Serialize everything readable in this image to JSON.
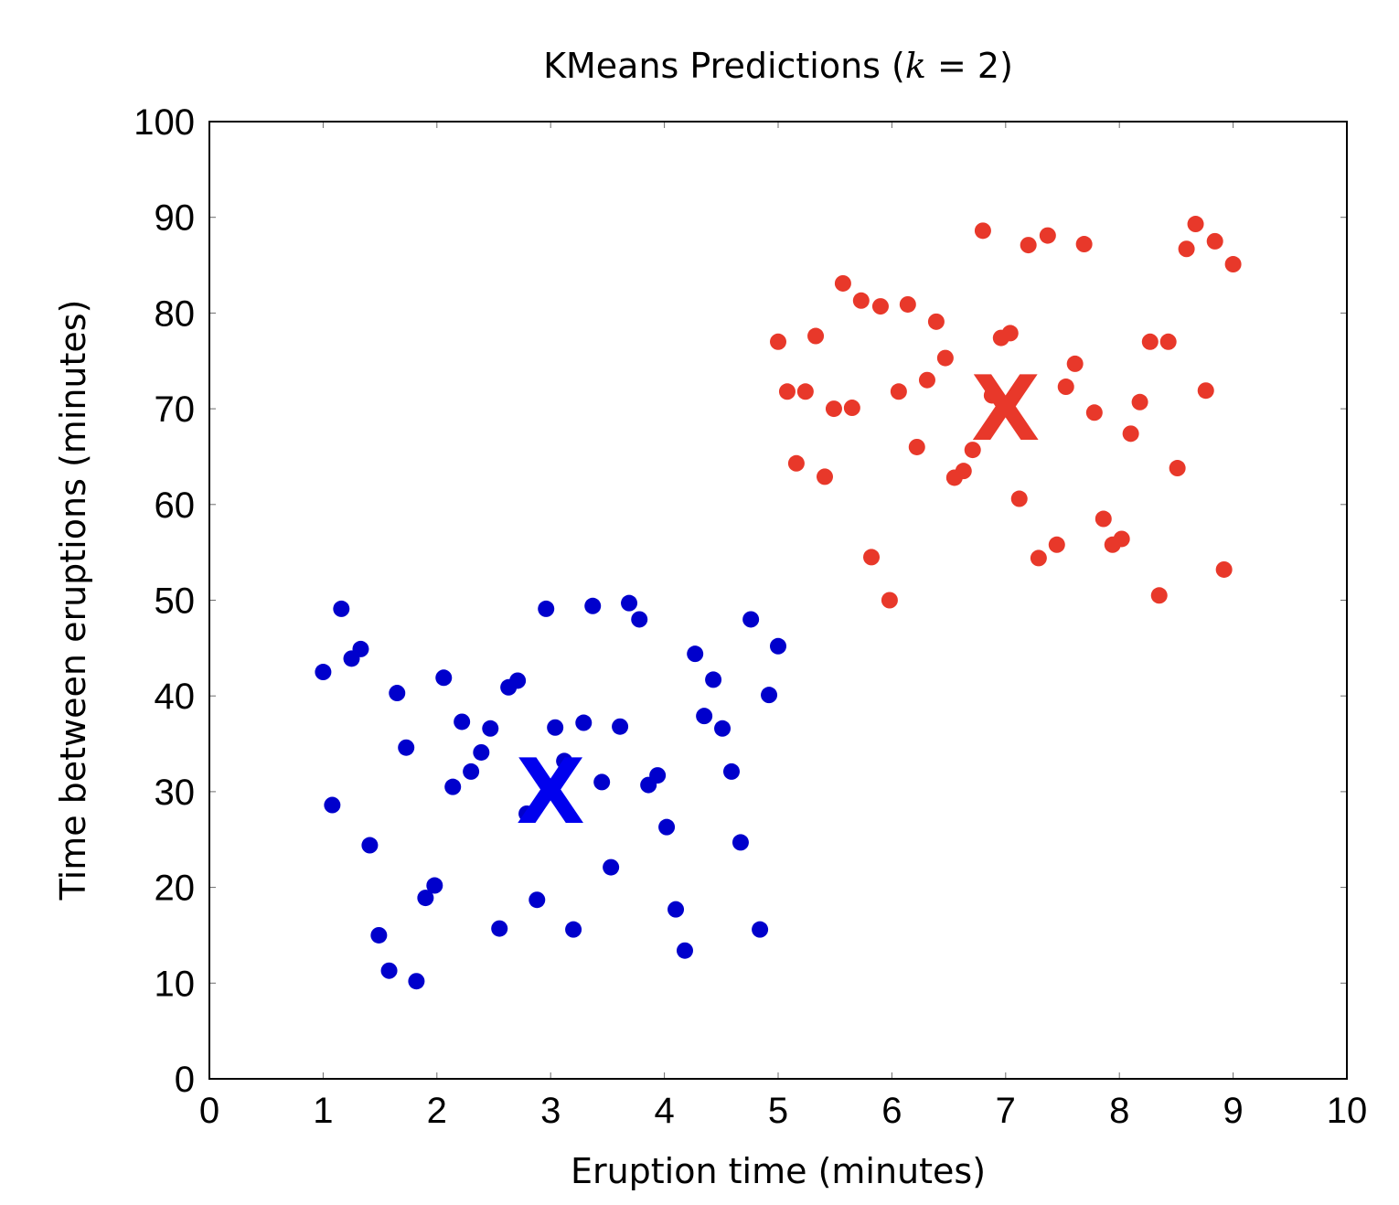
{
  "chart_data": {
    "type": "scatter",
    "title_parts": [
      "KMeans Predictions (",
      "k",
      " = 2)"
    ],
    "xlabel": "Eruption time (minutes)",
    "ylabel": "Time between eruptions (minutes)",
    "xlim": [
      0,
      10
    ],
    "ylim": [
      0,
      100
    ],
    "xticks": [
      "0",
      "1",
      "2",
      "3",
      "4",
      "5",
      "6",
      "7",
      "8",
      "9",
      "10"
    ],
    "yticks": [
      "0",
      "10",
      "20",
      "30",
      "40",
      "50",
      "60",
      "70",
      "80",
      "90",
      "100"
    ],
    "grid": false,
    "series": [
      {
        "color": "#0000cc",
        "points": [
          [
            1.0,
            42.5
          ],
          [
            1.08,
            28.6
          ],
          [
            1.16,
            49.1
          ],
          [
            1.25,
            43.9
          ],
          [
            1.33,
            44.9
          ],
          [
            1.41,
            24.4
          ],
          [
            1.49,
            15.0
          ],
          [
            1.58,
            11.3
          ],
          [
            1.65,
            40.3
          ],
          [
            1.73,
            34.6
          ],
          [
            1.82,
            10.2
          ],
          [
            1.9,
            18.9
          ],
          [
            1.98,
            20.2
          ],
          [
            2.06,
            41.9
          ],
          [
            2.14,
            30.5
          ],
          [
            2.22,
            37.3
          ],
          [
            2.3,
            32.1
          ],
          [
            2.39,
            34.1
          ],
          [
            2.47,
            36.6
          ],
          [
            2.55,
            15.7
          ],
          [
            2.63,
            40.9
          ],
          [
            2.71,
            41.6
          ],
          [
            2.79,
            27.7
          ],
          [
            2.88,
            18.7
          ],
          [
            2.96,
            49.1
          ],
          [
            3.04,
            36.7
          ],
          [
            3.12,
            33.2
          ],
          [
            3.2,
            15.6
          ],
          [
            3.29,
            37.2
          ],
          [
            3.37,
            49.4
          ],
          [
            3.45,
            31.0
          ],
          [
            3.53,
            22.1
          ],
          [
            3.61,
            36.8
          ],
          [
            3.69,
            49.7
          ],
          [
            3.78,
            48.0
          ],
          [
            3.86,
            30.7
          ],
          [
            3.94,
            31.7
          ],
          [
            4.02,
            26.3
          ],
          [
            4.1,
            17.7
          ],
          [
            4.18,
            13.4
          ],
          [
            4.27,
            44.4
          ],
          [
            4.35,
            37.9
          ],
          [
            4.43,
            41.7
          ],
          [
            4.51,
            36.6
          ],
          [
            4.59,
            32.1
          ],
          [
            4.67,
            24.7
          ],
          [
            4.76,
            48.0
          ],
          [
            4.84,
            15.6
          ],
          [
            4.92,
            40.1
          ],
          [
            5.0,
            45.2
          ]
        ]
      },
      {
        "color": "#e8382a",
        "points": [
          [
            5.0,
            77.0
          ],
          [
            5.08,
            71.8
          ],
          [
            5.16,
            64.3
          ],
          [
            5.24,
            71.8
          ],
          [
            5.33,
            77.6
          ],
          [
            5.41,
            62.9
          ],
          [
            5.49,
            70.0
          ],
          [
            5.57,
            83.1
          ],
          [
            5.65,
            70.1
          ],
          [
            5.73,
            81.3
          ],
          [
            5.82,
            54.5
          ],
          [
            5.9,
            80.7
          ],
          [
            5.98,
            50.0
          ],
          [
            6.06,
            71.8
          ],
          [
            6.14,
            80.9
          ],
          [
            6.22,
            66.0
          ],
          [
            6.31,
            73.0
          ],
          [
            6.39,
            79.1
          ],
          [
            6.47,
            75.3
          ],
          [
            6.55,
            62.8
          ],
          [
            6.63,
            63.5
          ],
          [
            6.71,
            65.7
          ],
          [
            6.8,
            88.6
          ],
          [
            6.88,
            71.4
          ],
          [
            6.96,
            77.4
          ],
          [
            7.04,
            77.9
          ],
          [
            7.12,
            60.6
          ],
          [
            7.2,
            87.1
          ],
          [
            7.29,
            54.4
          ],
          [
            7.37,
            88.1
          ],
          [
            7.45,
            55.8
          ],
          [
            7.53,
            72.3
          ],
          [
            7.61,
            74.7
          ],
          [
            7.69,
            87.2
          ],
          [
            7.78,
            69.6
          ],
          [
            7.86,
            58.5
          ],
          [
            7.94,
            55.8
          ],
          [
            8.02,
            56.4
          ],
          [
            8.1,
            67.4
          ],
          [
            8.18,
            70.7
          ],
          [
            8.27,
            77.0
          ],
          [
            8.35,
            50.5
          ],
          [
            8.43,
            77.0
          ],
          [
            8.51,
            63.8
          ],
          [
            8.59,
            86.7
          ],
          [
            8.67,
            89.3
          ],
          [
            8.76,
            71.9
          ],
          [
            8.84,
            87.5
          ],
          [
            8.92,
            53.2
          ],
          [
            9.0,
            85.1
          ]
        ]
      }
    ],
    "centroids": [
      {
        "label": "X",
        "x": 3.0,
        "y": 30.0,
        "color": "#0000ee"
      },
      {
        "label": "X",
        "x": 7.0,
        "y": 70.0,
        "color": "#e8382a"
      }
    ]
  }
}
